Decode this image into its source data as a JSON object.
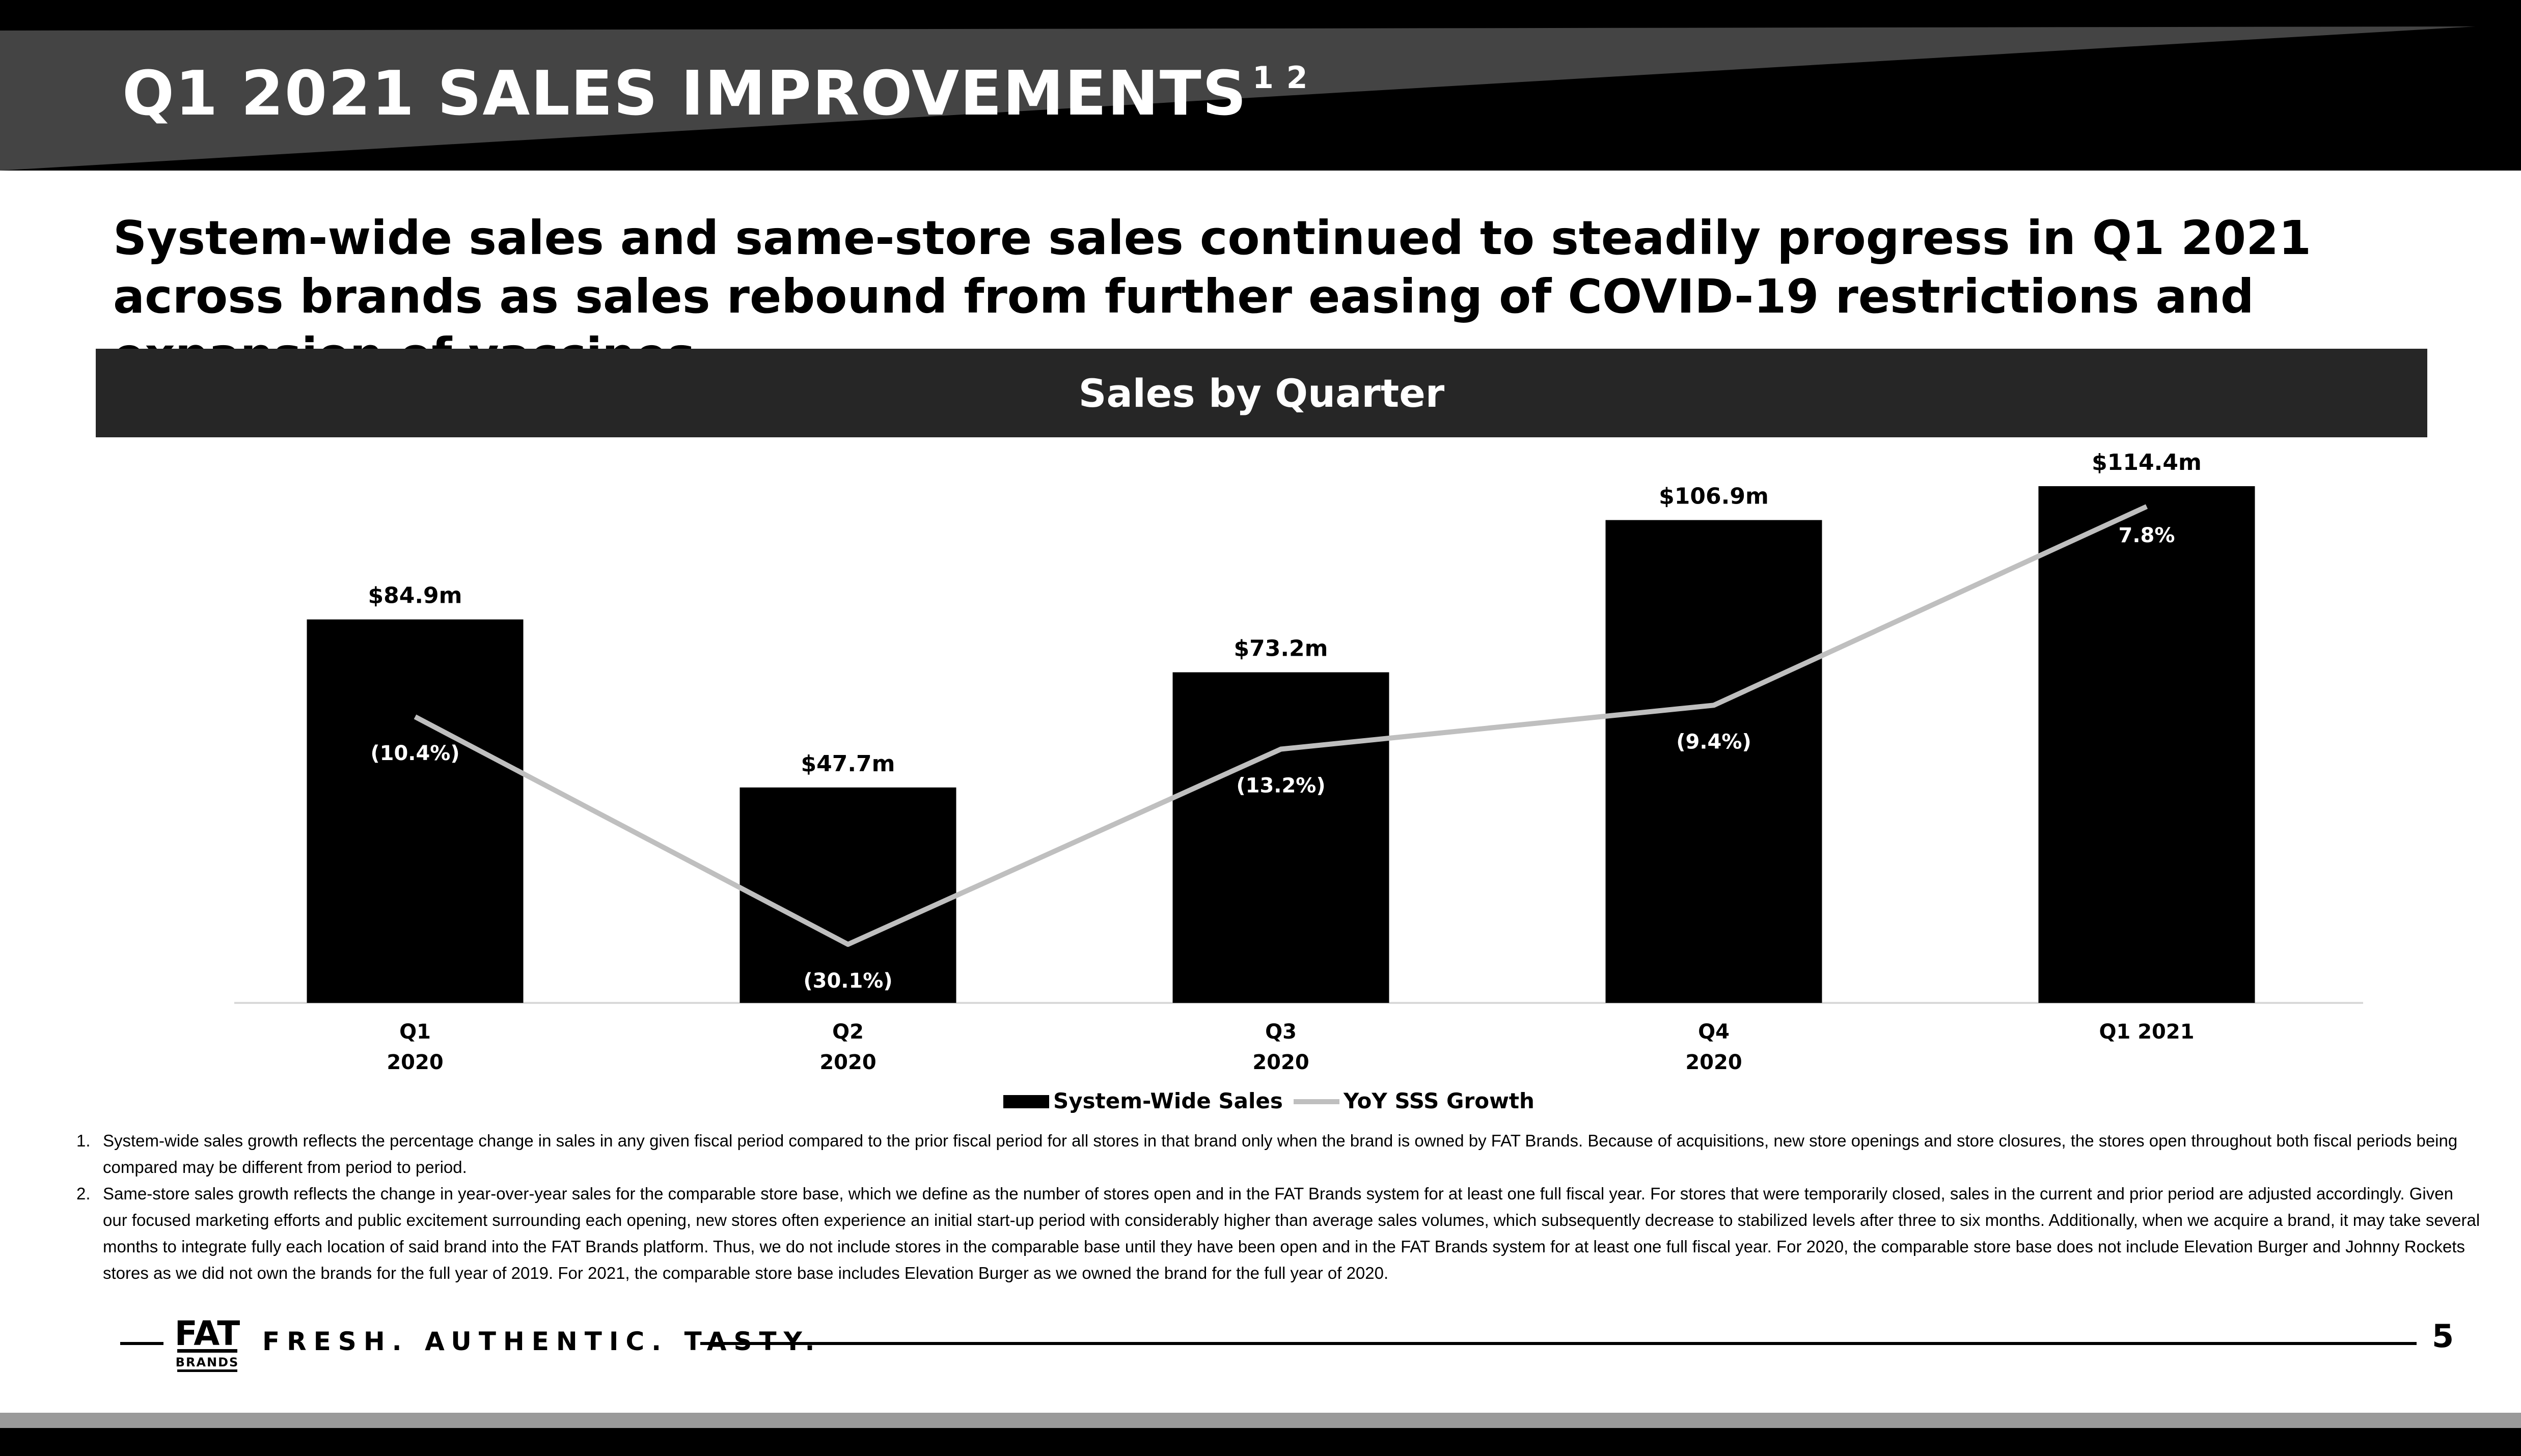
{
  "slide": {
    "title": "Q1 2021 SALES IMPROVEMENTS",
    "title_superscript": "1 2",
    "subtitle": "System-wide sales and same-store sales continued to steadily progress in Q1 2021 across brands as sales rebound from further easing of COVID-19 restrictions and expansion of vaccines",
    "page_number": "5"
  },
  "footer": {
    "tagline": "FRESH. AUTHENTIC. TASTY.",
    "logo_text_top": "FAT",
    "logo_text_bottom": "BRANDS"
  },
  "footnotes": [
    {
      "num": "1.",
      "text": "System-wide sales growth reflects the percentage change in sales in any given fiscal period compared to the prior fiscal period for all stores in that brand only when the brand is owned by FAT Brands.  Because of acquisitions, new store openings and store closures, the stores open throughout both fiscal periods being compared may be different from period to period."
    },
    {
      "num": "2.",
      "text": "Same-store sales growth reflects the change in year-over-year sales for the comparable store base, which we define as the number of stores open and in the FAT Brands system for at least one full fiscal year. For stores that were temporarily closed, sales in the current and prior period are adjusted accordingly. Given our focused marketing efforts and public excitement surrounding each opening, new stores often experience an initial start-up period with considerably higher than average sales volumes, which subsequently decrease to stabilized levels after three to six months.  Additionally, when we acquire a brand, it may take several months to integrate fully each location of said brand into the FAT Brands platform. Thus, we do not include stores in the comparable base until they have been open and in the FAT Brands system for at least one full fiscal year.  For 2020, the comparable store base does not include Elevation Burger and Johnny Rockets stores as we did not own the brands for the full year of 2019. For 2021, the comparable store base includes Elevation Burger as we owned the brand for the full year of 2020."
    }
  ],
  "chart_data": {
    "type": "bar",
    "title": "Sales by Quarter",
    "categories": [
      [
        "Q1",
        "2020"
      ],
      [
        "Q2",
        "2020"
      ],
      [
        "Q3",
        "2020"
      ],
      [
        "Q4",
        "2020"
      ],
      [
        "Q1 2021"
      ]
    ],
    "series": [
      {
        "name": "System-Wide Sales",
        "type": "bar",
        "color": "#000000",
        "values": [
          84.9,
          47.7,
          73.2,
          106.9,
          114.4
        ],
        "labels": [
          "$84.9m",
          "$47.7m",
          "$73.2m",
          "$106.9m",
          "$114.4m"
        ]
      },
      {
        "name": "YoY SSS Growth",
        "type": "line",
        "color": "#bfbfbf",
        "values": [
          -10.4,
          -30.1,
          -13.2,
          -9.4,
          7.8
        ],
        "labels": [
          "(10.4%)",
          "(30.1%)",
          "(13.2%)",
          "(9.4%)",
          "7.8%"
        ]
      }
    ],
    "legend": "bottom-center",
    "grid": false
  }
}
